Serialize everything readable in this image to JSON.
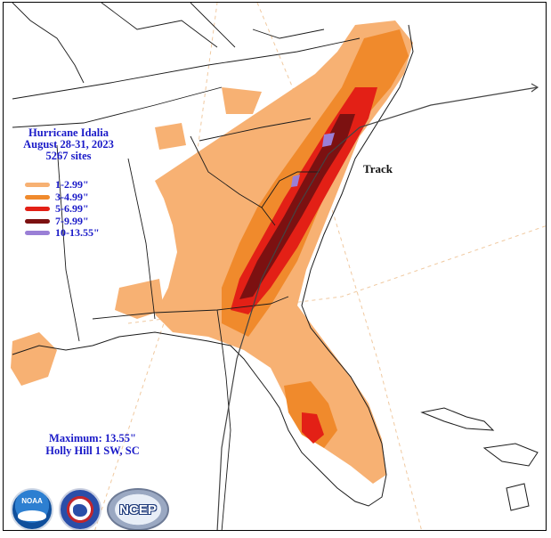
{
  "title": {
    "storm_name": "Hurricane Idalia",
    "dates": "August 28-31, 2023",
    "sites": "5267 sites"
  },
  "legend": {
    "items": [
      {
        "label": "1-2.99\"",
        "color": "#f7b173"
      },
      {
        "label": "3-4.99\"",
        "color": "#f08a2c"
      },
      {
        "label": "5-6.99\"",
        "color": "#e32016"
      },
      {
        "label": "7-9.99\"",
        "color": "#7c1111"
      },
      {
        "label": "10-13.55\"",
        "color": "#9a7fd6"
      }
    ]
  },
  "track_label": "Track",
  "maximum": {
    "line1": "Maximum:  13.55\"",
    "line2": "Holly Hill 1 SW, SC"
  },
  "logos": [
    {
      "name": "noaa-logo",
      "text": "NOAA"
    },
    {
      "name": "nws-logo",
      "text": ""
    },
    {
      "name": "ncep-logo",
      "text": "NCEP"
    }
  ],
  "colors": {
    "state_border": "#1b1b1b",
    "track": "#444444",
    "graticule": "#f0c9a0",
    "water": "#ffffff"
  }
}
